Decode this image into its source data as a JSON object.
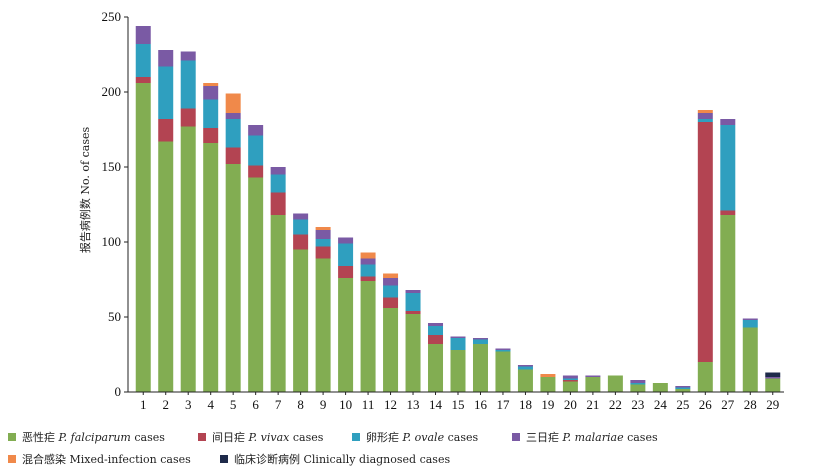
{
  "chart_data": {
    "type": "bar",
    "stacked": true,
    "ylabel": "报告病例数  No. of cases",
    "ylim": [
      0,
      250
    ],
    "yticks": [
      0,
      50,
      100,
      150,
      200,
      250
    ],
    "categories": [
      "1",
      "2",
      "3",
      "4",
      "5",
      "6",
      "7",
      "8",
      "9",
      "10",
      "11",
      "12",
      "13",
      "14",
      "15",
      "16",
      "17",
      "18",
      "19",
      "20",
      "21",
      "22",
      "23",
      "24",
      "25",
      "26",
      "27",
      "28",
      "29"
    ],
    "series": [
      {
        "name_cn": "恶性疟",
        "name_latin": "P. falciparum",
        "name_en": "cases",
        "color": "#82ad52",
        "values": [
          206,
          167,
          177,
          166,
          152,
          143,
          118,
          95,
          89,
          76,
          74,
          56,
          52,
          32,
          28,
          32,
          27,
          15,
          10,
          7,
          10,
          11,
          5,
          6,
          2,
          20,
          118,
          43,
          9
        ]
      },
      {
        "name_cn": "间日疟",
        "name_latin": "P. vivax",
        "name_en": "cases",
        "color": "#b34452",
        "values": [
          4,
          15,
          12,
          10,
          11,
          8,
          15,
          10,
          8,
          8,
          3,
          7,
          2,
          6,
          0,
          0,
          0,
          0,
          0,
          1,
          0,
          0,
          0,
          0,
          0,
          160,
          3,
          0,
          0
        ]
      },
      {
        "name_cn": "卵形疟",
        "name_latin": "P. ovale",
        "name_en": "cases",
        "color": "#2f9fbf",
        "values": [
          22,
          35,
          32,
          19,
          19,
          20,
          12,
          10,
          5,
          15,
          8,
          8,
          12,
          6,
          8,
          3,
          1,
          2,
          0,
          1,
          0,
          0,
          1,
          0,
          1,
          2,
          57,
          5,
          0
        ]
      },
      {
        "name_cn": "三日疟",
        "name_latin": "P. malariae",
        "name_en": "cases",
        "color": "#7a5aa4",
        "values": [
          12,
          11,
          6,
          9,
          4,
          7,
          5,
          4,
          6,
          4,
          4,
          5,
          2,
          2,
          1,
          1,
          1,
          1,
          0,
          2,
          1,
          0,
          2,
          0,
          1,
          4,
          4,
          1,
          1
        ]
      },
      {
        "name_cn": "混合感染",
        "name_latin": "",
        "name_en": "Mixed-infection cases",
        "color": "#f0894a",
        "values": [
          0,
          0,
          0,
          2,
          13,
          0,
          0,
          0,
          2,
          0,
          4,
          3,
          0,
          0,
          0,
          0,
          0,
          0,
          2,
          0,
          0,
          0,
          0,
          0,
          0,
          2,
          0,
          0,
          0
        ]
      },
      {
        "name_cn": "临床诊断病例",
        "name_latin": "",
        "name_en": "Clinically diagnosed cases",
        "color": "#1e2a4a",
        "values": [
          0,
          0,
          0,
          0,
          0,
          0,
          0,
          0,
          0,
          0,
          0,
          0,
          0,
          0,
          0,
          0,
          0,
          0,
          0,
          0,
          0,
          0,
          0,
          0,
          0,
          0,
          0,
          0,
          3
        ]
      }
    ],
    "grid": false,
    "legend_position": "bottom"
  },
  "legend": {
    "row1": [
      {
        "cn": "恶性疟",
        "latin": "P. falciparum",
        "en": "cases",
        "color": "#82ad52"
      },
      {
        "cn": "间日疟",
        "latin": "P. vivax",
        "en": "cases",
        "color": "#b34452"
      },
      {
        "cn": "卵形疟",
        "latin": "P. ovale",
        "en": "cases",
        "color": "#2f9fbf"
      },
      {
        "cn": "三日疟",
        "latin": "P. malariae",
        "en": "cases",
        "color": "#7a5aa4"
      }
    ],
    "row2": [
      {
        "cn": "混合感染",
        "latin": "",
        "en": "Mixed-infection cases",
        "color": "#f0894a"
      },
      {
        "cn": "临床诊断病例",
        "latin": "",
        "en": "Clinically diagnosed cases",
        "color": "#1e2a4a"
      }
    ]
  }
}
